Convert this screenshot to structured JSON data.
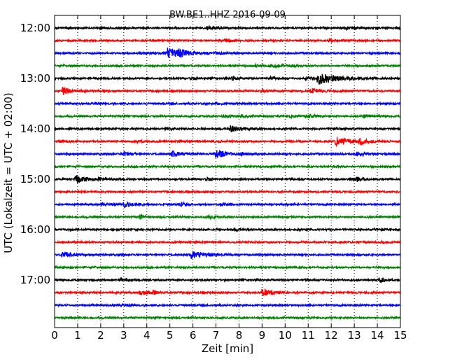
{
  "chart_data": {
    "type": "line",
    "title": "BW.BE1..HHZ 2016-09-09",
    "xlabel": "Zeit  [min]",
    "ylabel": "UTC (Lokalzeit = UTC + 02:00)",
    "xlim": [
      0,
      15
    ],
    "x_ticks": [
      "0",
      "1",
      "2",
      "3",
      "4",
      "5",
      "6",
      "7",
      "8",
      "9",
      "10",
      "11",
      "12",
      "13",
      "14",
      "15"
    ],
    "y_ticks": [
      "12:00",
      "13:00",
      "14:00",
      "15:00",
      "16:00",
      "17:00"
    ],
    "grid": true,
    "trace_colors": [
      "#000000",
      "#ff0000",
      "#0000ff",
      "#008000"
    ],
    "series": [
      {
        "start": "12:00",
        "events": [
          [
            0.5,
            1.0,
            0.6
          ],
          [
            2.0,
            1.2,
            0.7
          ],
          [
            6.6,
            2.0,
            1.2
          ],
          [
            12.6,
            1.8,
            1.0
          ],
          [
            14.95,
            1.5,
            0.6
          ]
        ]
      },
      {
        "start": "12:15",
        "events": [
          [
            7.4,
            2.5,
            0.6
          ],
          [
            11.9,
            2.0,
            0.6
          ]
        ]
      },
      {
        "start": "12:30",
        "events": [
          [
            4.9,
            7.0,
            1.8
          ],
          [
            5.4,
            3.0,
            0.8
          ],
          [
            7.0,
            2.0,
            0.8
          ],
          [
            3.7,
            1.2,
            1.0
          ]
        ]
      },
      {
        "start": "12:45",
        "events": [
          [
            8.7,
            1.5,
            1.4
          ],
          [
            9.3,
            1.5,
            1.0
          ],
          [
            9.6,
            1.2,
            1.0
          ],
          [
            10.3,
            1.0,
            0.8
          ]
        ]
      },
      {
        "start": "13:00",
        "events": [
          [
            11.4,
            8.0,
            2.2
          ],
          [
            9.3,
            3.0,
            0.4
          ],
          [
            7.7,
            3.0,
            0.4
          ],
          [
            5.9,
            2.0,
            0.5
          ],
          [
            10.9,
            2.0,
            1.0
          ]
        ]
      },
      {
        "start": "13:15",
        "events": [
          [
            0.35,
            5.0,
            0.8
          ],
          [
            2.1,
            1.5,
            0.6
          ],
          [
            11.1,
            4.0,
            1.0
          ],
          [
            8.9,
            2.0,
            0.8
          ]
        ]
      },
      {
        "start": "13:30",
        "events": [
          [
            7.0,
            1.0,
            0.8
          ]
        ]
      },
      {
        "start": "13:45",
        "events": [
          [
            7.3,
            2.0,
            0.8
          ],
          [
            8.1,
            1.5,
            0.6
          ],
          [
            10.2,
            2.0,
            0.5
          ],
          [
            10.9,
            3.0,
            1.2
          ],
          [
            13.4,
            2.0,
            0.5
          ]
        ]
      },
      {
        "start": "14:00",
        "events": [
          [
            4.8,
            2.0,
            0.6
          ],
          [
            7.6,
            4.5,
            1.2
          ],
          [
            12.1,
            1.2,
            0.8
          ]
        ]
      },
      {
        "start": "14:15",
        "events": [
          [
            0.3,
            1.5,
            0.5
          ],
          [
            3.6,
            2.0,
            0.6
          ],
          [
            12.2,
            6.0,
            1.6
          ],
          [
            13.2,
            4.0,
            0.8
          ],
          [
            6.8,
            1.2,
            1.0
          ]
        ]
      },
      {
        "start": "14:30",
        "events": [
          [
            3.0,
            3.5,
            0.6
          ],
          [
            5.1,
            4.0,
            1.0
          ],
          [
            7.0,
            6.0,
            1.2
          ],
          [
            8.1,
            2.0,
            0.6
          ],
          [
            13.1,
            3.5,
            1.0
          ]
        ]
      },
      {
        "start": "14:45",
        "events": [
          [
            12.1,
            2.0,
            0.6
          ]
        ]
      },
      {
        "start": "15:00",
        "events": [
          [
            0.9,
            6.0,
            1.2
          ],
          [
            1.9,
            2.0,
            0.6
          ],
          [
            6.6,
            3.0,
            0.3
          ],
          [
            12.8,
            2.0,
            0.8
          ],
          [
            13.1,
            3.0,
            0.5
          ]
        ]
      },
      {
        "start": "15:15",
        "events": []
      },
      {
        "start": "15:30",
        "events": [
          [
            2.0,
            2.0,
            0.4
          ],
          [
            3.0,
            4.0,
            1.0
          ],
          [
            5.5,
            3.0,
            0.3
          ],
          [
            7.2,
            2.0,
            0.8
          ]
        ]
      },
      {
        "start": "15:45",
        "events": [
          [
            3.7,
            3.0,
            0.4
          ],
          [
            6.7,
            2.0,
            0.6
          ]
        ]
      },
      {
        "start": "16:00",
        "events": [
          [
            7.8,
            1.5,
            0.4
          ],
          [
            14.0,
            1.2,
            0.8
          ]
        ]
      },
      {
        "start": "16:15",
        "events": [
          [
            14.2,
            1.2,
            0.5
          ]
        ]
      },
      {
        "start": "16:30",
        "events": [
          [
            0.3,
            6.0,
            0.8
          ],
          [
            5.9,
            5.0,
            1.6
          ],
          [
            13.2,
            1.2,
            0.5
          ]
        ]
      },
      {
        "start": "16:45",
        "events": []
      },
      {
        "start": "17:00",
        "events": [
          [
            2.8,
            2.0,
            0.6
          ],
          [
            14.1,
            4.0,
            0.4
          ]
        ]
      },
      {
        "start": "17:15",
        "events": [
          [
            3.7,
            3.5,
            1.0
          ],
          [
            4.25,
            3.0,
            0.4
          ],
          [
            9.0,
            4.5,
            1.2
          ]
        ]
      },
      {
        "start": "17:30",
        "events": [
          [
            2.5,
            1.2,
            1.0
          ]
        ]
      },
      {
        "start": "17:45",
        "events": []
      }
    ]
  }
}
